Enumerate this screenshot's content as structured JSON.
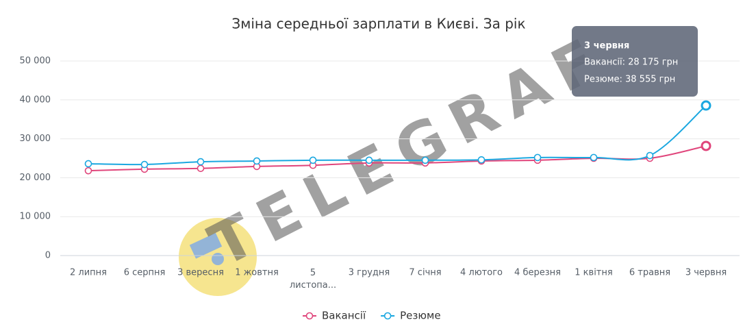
{
  "chart_data": {
    "type": "line",
    "title": "Зміна середньої зарплати в Києві. За рік",
    "categories": [
      "2 липня",
      "6 серпня",
      "3 вересня",
      "1 жовтня",
      "5 листопа...",
      "3 грудня",
      "7 січня",
      "4 лютого",
      "4 березня",
      "1 квітня",
      "6 травня",
      "3 червня"
    ],
    "series": [
      {
        "name": "Вакансії",
        "color": "#e0457b",
        "values": [
          21800,
          22200,
          22400,
          22900,
          23200,
          23800,
          23800,
          24300,
          24500,
          25000,
          25000,
          28175
        ]
      },
      {
        "name": "Резюме",
        "color": "#1aa7e0",
        "values": [
          23600,
          23400,
          24100,
          24300,
          24500,
          24500,
          24500,
          24600,
          25200,
          25200,
          25700,
          38555
        ]
      }
    ],
    "ylim": [
      0,
      50000
    ],
    "yticks": [
      {
        "value": 0,
        "label": "0"
      },
      {
        "value": 10000,
        "label": "10 000"
      },
      {
        "value": 20000,
        "label": "20 000"
      },
      {
        "value": 30000,
        "label": "30 000"
      },
      {
        "value": 40000,
        "label": "40 000"
      },
      {
        "value": 50000,
        "label": "50 000"
      }
    ],
    "grid": true,
    "legend": "bottom",
    "tooltip": {
      "title": "3 червня",
      "lines": [
        "Вакансії: 28 175 грн",
        "Резюме: 38 555 грн"
      ]
    },
    "watermark": "TELEGRAF"
  }
}
